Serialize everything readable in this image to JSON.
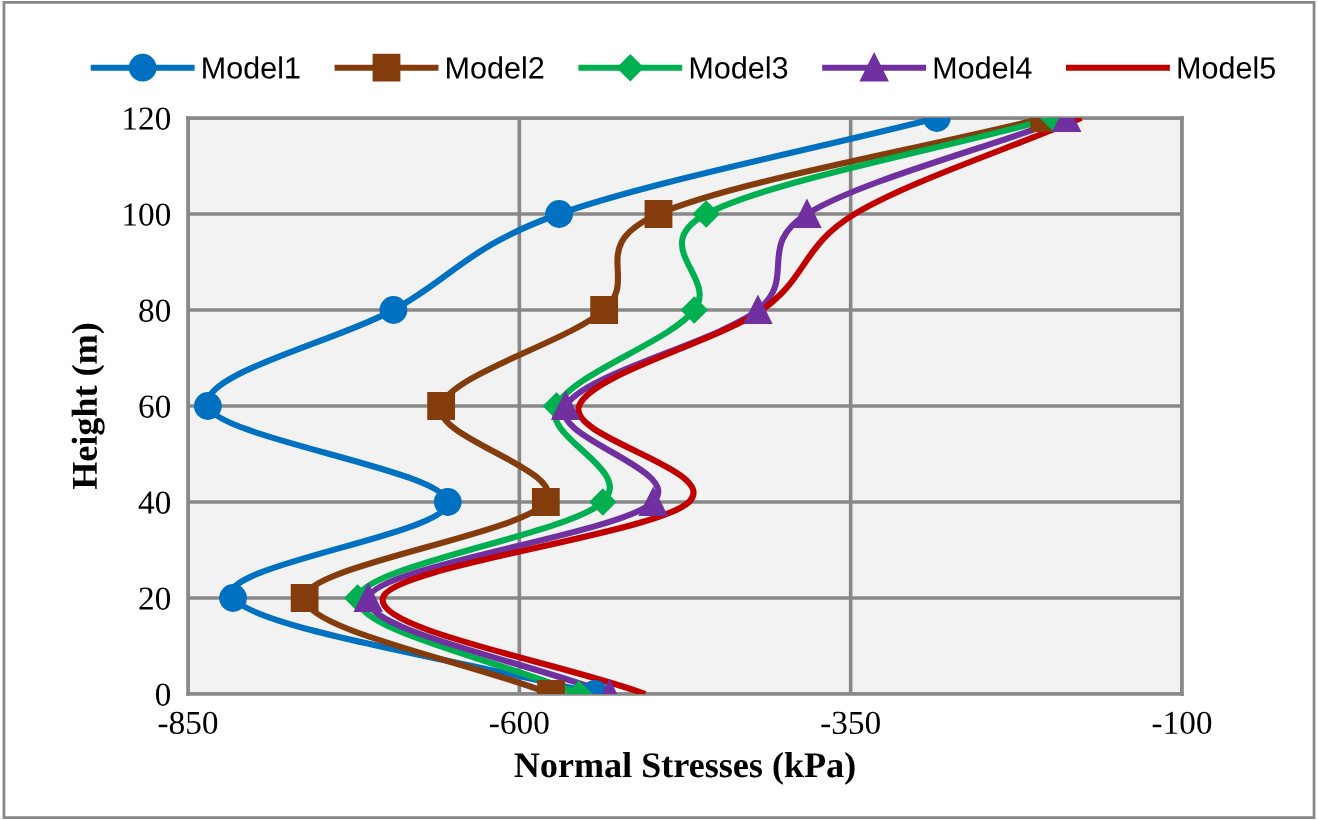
{
  "chart_data": {
    "type": "line",
    "xlabel": "Normal Stresses (kPa)",
    "ylabel": "Height (m)",
    "xlim": [
      -850,
      -100
    ],
    "xticks": [
      -850,
      -600,
      -350,
      -100
    ],
    "ylim": [
      0,
      120
    ],
    "yticks": [
      0,
      20,
      40,
      60,
      80,
      100,
      120
    ],
    "grid": true,
    "legend": "top",
    "line_style": "solid",
    "series": [
      {
        "name": "Model1",
        "color": "#0070c0",
        "marker": "circle",
        "x": [
          -543,
          -816,
          -654,
          -835,
          -695,
          -570,
          -285
        ],
        "values": [
          0,
          20,
          40,
          60,
          80,
          100,
          120
        ]
      },
      {
        "name": "Model2",
        "color": "#843c0c",
        "marker": "square",
        "x": [
          -576,
          -762,
          -580,
          -659,
          -536,
          -495,
          -204
        ],
        "values": [
          0,
          20,
          40,
          60,
          80,
          100,
          120
        ]
      },
      {
        "name": "Model3",
        "color": "#00b050",
        "marker": "diamond",
        "x": [
          -555,
          -722,
          -537,
          -572,
          -468,
          -459,
          -197
        ],
        "values": [
          0,
          20,
          40,
          60,
          80,
          100,
          120
        ]
      },
      {
        "name": "Model4",
        "color": "#7030a0",
        "marker": "triangle",
        "x": [
          -532,
          -714,
          -499,
          -565,
          -420,
          -383,
          -187
        ],
        "values": [
          0,
          20,
          40,
          60,
          80,
          100,
          120
        ]
      },
      {
        "name": "Model5",
        "color": "#c00000",
        "marker": "none",
        "x": [
          -505,
          -703,
          -472,
          -555,
          -417,
          -347,
          -176
        ],
        "values": [
          0,
          20,
          40,
          60,
          80,
          100,
          120
        ]
      }
    ]
  }
}
